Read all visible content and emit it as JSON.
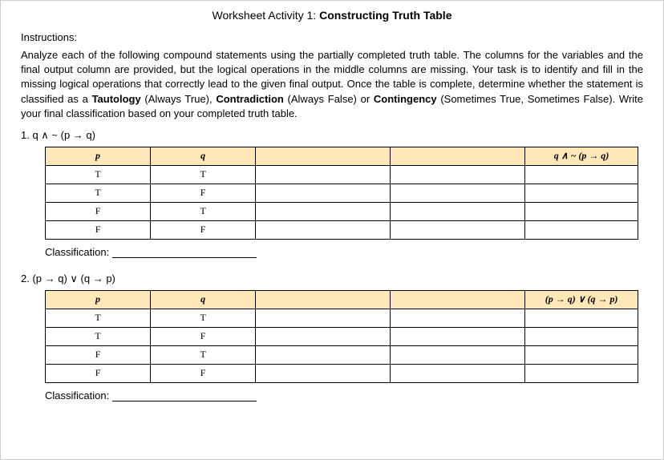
{
  "title_light": "Worksheet Activity 1: ",
  "title_bold": "Constructing Truth Table",
  "instructions_label": "Instructions:",
  "instructions_body_1": "Analyze each of the following compound statements using the partially completed truth table. The columns for the variables and the final output column are provided, but the logical operations in the middle columns are missing. Your task is to identify and fill in the missing logical operations that correctly lead to the given final output. Once the table is complete, determine whether the statement is classified as a ",
  "taut": "Tautology",
  "taut_after": " (Always True), ",
  "contr": "Contradiction",
  "contr_after": " (Always False) or ",
  "cont": "Contingency",
  "cont_after": " (Sometimes True, Sometimes False). Write your final classification based on your completed truth table.",
  "problem1": {
    "num": "1.  q ∧ ~ (p → q)",
    "headers": {
      "p": "p",
      "q": "q",
      "final": "q ∧ ~ (p → q)"
    },
    "rows": [
      {
        "p": "T",
        "q": "T"
      },
      {
        "p": "T",
        "q": "F"
      },
      {
        "p": "F",
        "q": "T"
      },
      {
        "p": "F",
        "q": "F"
      }
    ]
  },
  "problem2": {
    "num": "2.  (p → q) ∨ (q → p)",
    "headers": {
      "p": "p",
      "q": "q",
      "final": "(p → q) ∨ (q → p)"
    },
    "rows": [
      {
        "p": "T",
        "q": "T"
      },
      {
        "p": "T",
        "q": "F"
      },
      {
        "p": "F",
        "q": "T"
      },
      {
        "p": "F",
        "q": "F"
      }
    ]
  },
  "classification_label": "Classification:",
  "colors": {
    "header_bg": "#ffe8b8",
    "border": "#000000",
    "page_bg": "#ffffff"
  }
}
